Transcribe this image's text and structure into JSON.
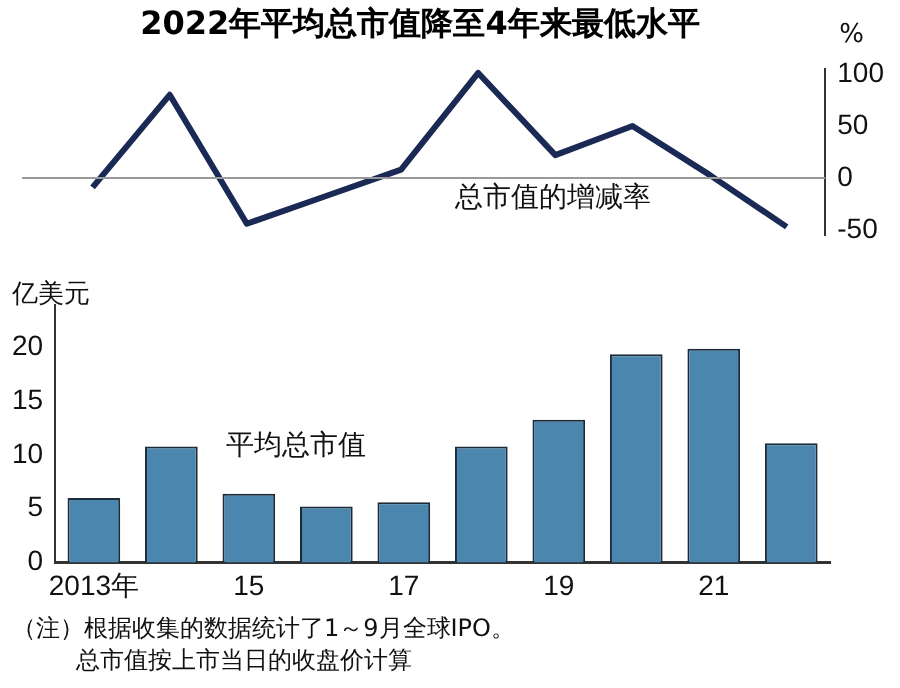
{
  "chart_data": [
    {
      "type": "line",
      "title": "2022年平均总市值降至4年来最低水平",
      "ylabel": "%",
      "categories": [
        null,
        null,
        null,
        null,
        null,
        null,
        null,
        null,
        null,
        null
      ],
      "values": [
        -9,
        80,
        -44,
        -18,
        8,
        101,
        22,
        50,
        3,
        -47
      ],
      "color": "#1b2a55",
      "ylim": [
        -55,
        105
      ],
      "yticks": [
        -50,
        0,
        50,
        100
      ],
      "tick_labels": "y",
      "ref_lines": [
        {
          "axis": "y",
          "value": 0,
          "label": null,
          "color": "#999999"
        }
      ],
      "annotations": [
        "总市值的增减率"
      ],
      "marker": "none",
      "legend": false,
      "grid": false
    },
    {
      "type": "bar",
      "ylabel": "亿美元",
      "categories": [
        "2013年",
        null,
        "15",
        null,
        "17",
        null,
        "19",
        null,
        "21",
        null
      ],
      "values": [
        6.0,
        10.8,
        6.4,
        5.2,
        5.6,
        10.8,
        13.3,
        19.4,
        19.9,
        11.1
      ],
      "color": "#4a86ae",
      "ylim": [
        0,
        24
      ],
      "yticks": [
        0,
        5,
        10,
        15,
        20
      ],
      "annotations": [
        "平均总市值",
        "（注）根据收集的数据统计了1～9月全球IPO。",
        "总市值按上市当日的收盘价计算"
      ],
      "legend": false,
      "grid": false
    }
  ]
}
